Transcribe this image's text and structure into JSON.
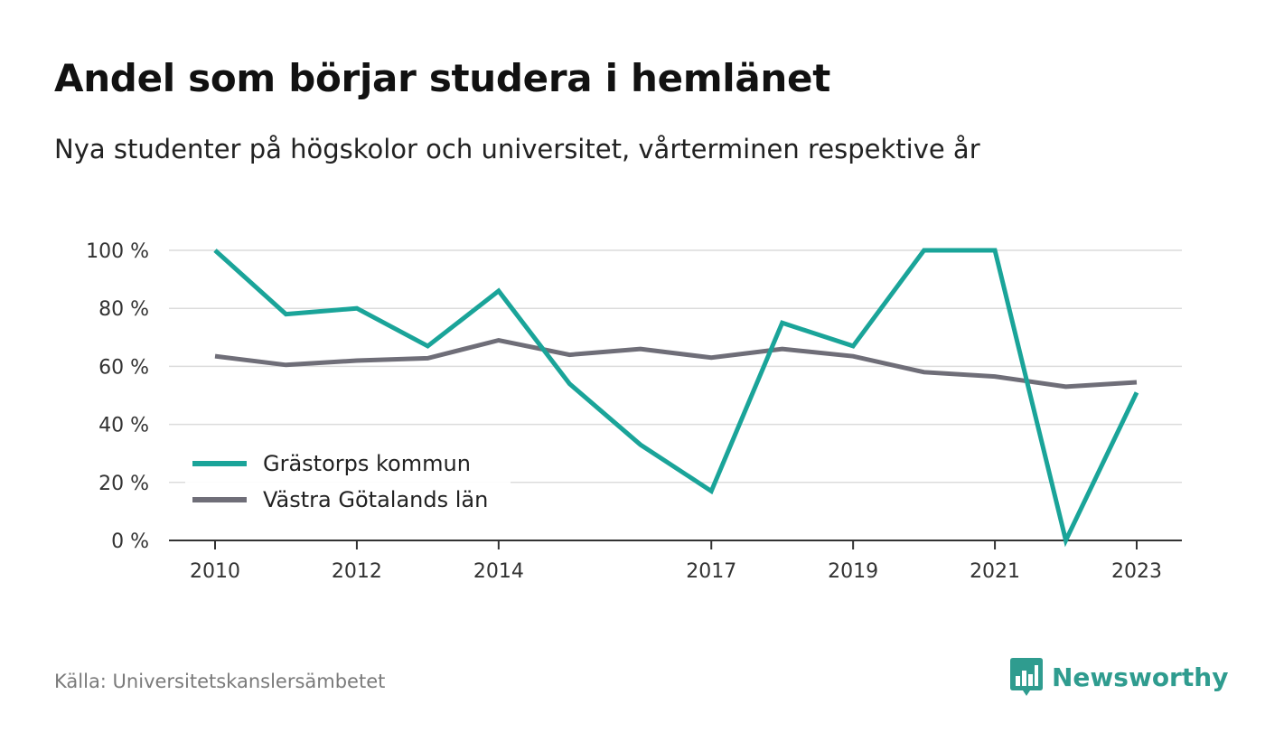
{
  "header": {
    "title": "Andel som börjar studera i hemlänet",
    "subtitle": "Nya studenter på högskolor och universitet, vårterminen respektive år"
  },
  "footer": {
    "source": "Källa: Universitetskanslersämbetet",
    "brand": "Newsworthy",
    "brand_icon": "bar-chart-speech-bubble-icon",
    "brand_color": "#2f9c8f"
  },
  "chart_data": {
    "type": "line",
    "x": [
      2010,
      2011,
      2012,
      2013,
      2014,
      2015,
      2016,
      2017,
      2018,
      2019,
      2020,
      2021,
      2022,
      2023
    ],
    "x_tick_labels": [
      "2010",
      "2012",
      "2014",
      "2017",
      "2019",
      "2021",
      "2023"
    ],
    "x_tick_values": [
      2010,
      2012,
      2014,
      2017,
      2019,
      2021,
      2023
    ],
    "y_ticks": [
      0,
      20,
      40,
      60,
      80,
      100
    ],
    "y_tick_labels": [
      "0 %",
      "20 %",
      "40 %",
      "60 %",
      "80 %",
      "100 %"
    ],
    "ylim": [
      0,
      100
    ],
    "grid": true,
    "legend_position": "bottom-left",
    "series": [
      {
        "name": "Grästorps kommun",
        "color": "#1aa499",
        "values": [
          100,
          78,
          80,
          67,
          86,
          54,
          33,
          17,
          75,
          67,
          100,
          100,
          0,
          51
        ]
      },
      {
        "name": "Västra Götalands län",
        "color": "#6f6e78",
        "values": [
          63.5,
          60.5,
          62,
          62.8,
          69,
          64,
          66,
          63,
          66,
          63.5,
          58,
          56.5,
          53,
          54.5
        ]
      }
    ]
  }
}
